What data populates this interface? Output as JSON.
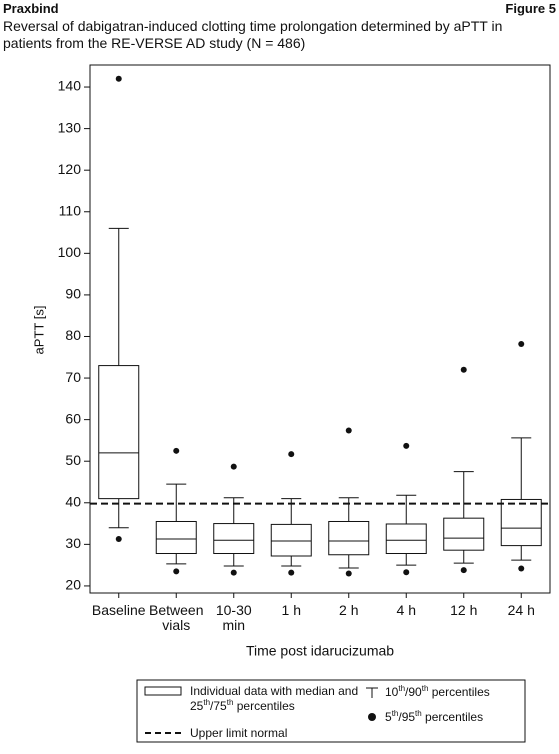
{
  "header": {
    "left": "Praxbind",
    "right": "Figure 5"
  },
  "chart_data": {
    "type": "box",
    "title": "Reversal of dabigatran-induced clotting time prolongation determined by aPTT in patients from the RE-VERSE AD study (N = 486)",
    "y_label": "aPTT [s]",
    "x_label": "Time post idarucizumab",
    "categories": [
      "Baseline",
      "Between vials",
      "10-30 min",
      "1 h",
      "2 h",
      "4 h",
      "12 h",
      "24 h"
    ],
    "boxes": [
      {
        "p5": 31.3,
        "p10": 34,
        "q1": 41,
        "median": 52,
        "q3": 73,
        "p90": 106,
        "p95": 142
      },
      {
        "p5": 23.5,
        "p10": 25.3,
        "q1": 27.8,
        "median": 31.3,
        "q3": 35.5,
        "p90": 44.5,
        "p95": 52.5
      },
      {
        "p5": 23.2,
        "p10": 24.8,
        "q1": 27.8,
        "median": 31,
        "q3": 35,
        "p90": 41.2,
        "p95": 48.7
      },
      {
        "p5": 23.2,
        "p10": 24.8,
        "q1": 27.2,
        "median": 30.8,
        "q3": 34.8,
        "p90": 41,
        "p95": 51.7
      },
      {
        "p5": 23,
        "p10": 24.3,
        "q1": 27.5,
        "median": 30.8,
        "q3": 35.5,
        "p90": 41.2,
        "p95": 57.4
      },
      {
        "p5": 23.3,
        "p10": 25,
        "q1": 27.8,
        "median": 31,
        "q3": 34.9,
        "p90": 41.8,
        "p95": 53.7
      },
      {
        "p5": 23.8,
        "p10": 25.5,
        "q1": 28.6,
        "median": 31.5,
        "q3": 36.3,
        "p90": 47.5,
        "p95": 72
      },
      {
        "p5": 24.2,
        "p10": 26.2,
        "q1": 29.7,
        "median": 33.9,
        "q3": 40.8,
        "p90": 55.6,
        "p95": 78.2
      }
    ],
    "reference_line": {
      "value": 39.8,
      "label": "Upper limit normal"
    },
    "ylim": [
      18.3,
      145.3
    ],
    "yticks": [
      20,
      30,
      40,
      50,
      60,
      70,
      80,
      90,
      100,
      110,
      120,
      130,
      140
    ],
    "color": "#111111",
    "legend": {
      "box": [
        {
          "text": "Individual data with median and 25"
        },
        {
          "text": "th",
          "sup": true
        },
        {
          "text": "/75"
        },
        {
          "text": "th",
          "sup": true
        },
        {
          "text": " percentiles"
        }
      ],
      "whisker": [
        {
          "text": "10"
        },
        {
          "text": "th",
          "sup": true
        },
        {
          "text": "/90"
        },
        {
          "text": "th",
          "sup": true
        },
        {
          "text": " percentiles"
        }
      ],
      "dot": [
        {
          "text": "5"
        },
        {
          "text": "th",
          "sup": true
        },
        {
          "text": "/95"
        },
        {
          "text": "th",
          "sup": true
        },
        {
          "text": " percentiles"
        }
      ]
    }
  }
}
